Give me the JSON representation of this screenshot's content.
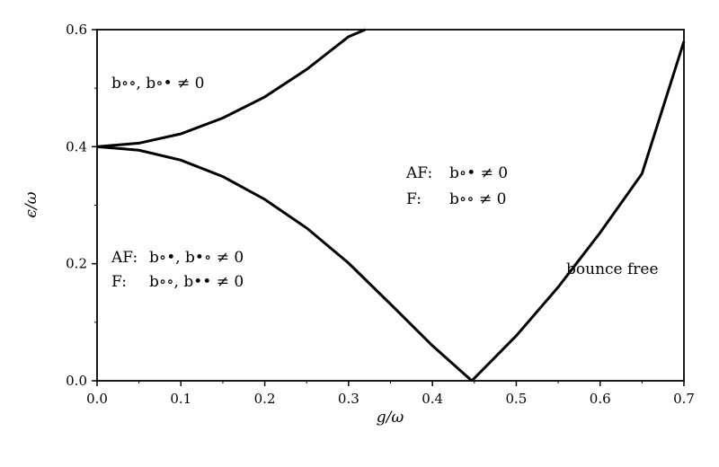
{
  "chart_data": {
    "type": "line",
    "xlabel": "g/ω",
    "ylabel": "ϵ/ω",
    "xlim": [
      0.0,
      0.7
    ],
    "ylim": [
      0.0,
      0.6
    ],
    "x_ticks": [
      "0.0",
      "0.1",
      "0.2",
      "0.3",
      "0.4",
      "0.5",
      "0.6",
      "0.7"
    ],
    "y_ticks": [
      "0.0",
      "0.2",
      "0.4",
      "0.6"
    ],
    "grid": false,
    "series": [
      {
        "x": [
          0.0,
          0.05,
          0.1,
          0.15,
          0.2,
          0.25,
          0.3,
          0.32
        ],
        "y": [
          0.4,
          0.406,
          0.422,
          0.449,
          0.485,
          0.532,
          0.588,
          0.6
        ]
      },
      {
        "x": [
          0.0,
          0.05,
          0.1,
          0.15,
          0.2,
          0.25,
          0.3,
          0.35,
          0.4,
          0.447
        ],
        "y": [
          0.4,
          0.394,
          0.377,
          0.349,
          0.31,
          0.261,
          0.201,
          0.131,
          0.06,
          0.0
        ]
      },
      {
        "x": [
          0.447,
          0.5,
          0.55,
          0.6,
          0.65,
          0.7
        ],
        "y": [
          0.0,
          0.077,
          0.16,
          0.253,
          0.354,
          0.58
        ]
      }
    ],
    "annotations": [
      {
        "id": "top_left",
        "lines": [
          {
            "prefix": "",
            "math": "b∘∘, b∘• ≠ 0"
          }
        ]
      },
      {
        "id": "middle",
        "lines": [
          {
            "prefix": "AF:",
            "math": "b∘• ≠ 0"
          },
          {
            "prefix": "F:",
            "math": "b∘∘ ≠ 0"
          }
        ]
      },
      {
        "id": "bottom_left",
        "lines": [
          {
            "prefix": "AF:",
            "math": "b∘•, b•∘ ≠ 0"
          },
          {
            "prefix": "F:",
            "math": "b∘∘, b•• ≠ 0"
          }
        ]
      },
      {
        "id": "right",
        "lines": [
          {
            "prefix": "",
            "math": "bounce free"
          }
        ]
      }
    ]
  }
}
